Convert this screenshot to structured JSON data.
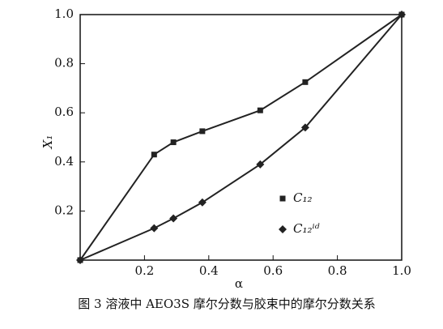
{
  "chart_data": {
    "type": "line",
    "caption": "图 3   溶液中 AEO3S 摩尔分数与胶束中的摩尔分数关系",
    "x_label": "α",
    "y_label": "X₁",
    "x": [
      0,
      0.23,
      0.29,
      0.38,
      0.56,
      0.7,
      1.0
    ],
    "series": [
      {
        "name": "C₁₂",
        "color": "#222222",
        "marker": "square",
        "values": [
          0,
          0.43,
          0.48,
          0.525,
          0.61,
          0.725,
          1.0
        ]
      },
      {
        "name": "C₁₂ⁱᵈ",
        "color": "#222222",
        "marker": "diamond",
        "values": [
          0,
          0.13,
          0.17,
          0.235,
          0.39,
          0.54,
          1.0
        ]
      }
    ],
    "xlim": [
      0,
      1
    ],
    "ylim": [
      0,
      1
    ],
    "xticks": [
      0.2,
      0.4,
      0.6,
      0.8,
      {
        "value": 1,
        "label": "1.0"
      }
    ],
    "yticks": [
      0.2,
      0.4,
      0.6,
      0.8,
      {
        "value": 1,
        "label": "1.0"
      }
    ],
    "legend": "right"
  }
}
